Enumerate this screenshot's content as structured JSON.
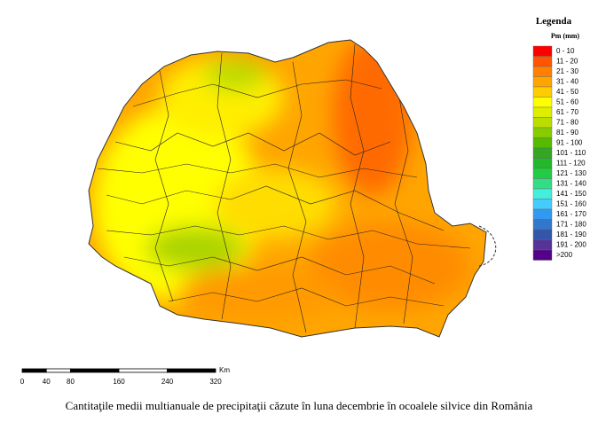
{
  "legend": {
    "title": "Legenda",
    "subtitle": "Pm (mm)",
    "items": [
      {
        "label": "0 - 10",
        "color": "#ff0000"
      },
      {
        "label": "11 - 20",
        "color": "#ff5500"
      },
      {
        "label": "21 - 30",
        "color": "#ff8000"
      },
      {
        "label": "31 - 40",
        "color": "#ffa500"
      },
      {
        "label": "41 - 50",
        "color": "#ffcc00"
      },
      {
        "label": "51 - 60",
        "color": "#ffff00"
      },
      {
        "label": "61 - 70",
        "color": "#ddee00"
      },
      {
        "label": "71 - 80",
        "color": "#bbdd00"
      },
      {
        "label": "81 - 90",
        "color": "#88cc00"
      },
      {
        "label": "91 - 100",
        "color": "#55bb00"
      },
      {
        "label": "101 - 110",
        "color": "#33a622"
      },
      {
        "label": "111 - 120",
        "color": "#22b82a"
      },
      {
        "label": "121 - 130",
        "color": "#22cc44"
      },
      {
        "label": "131 - 140",
        "color": "#33dd88"
      },
      {
        "label": "141 - 150",
        "color": "#44eedd"
      },
      {
        "label": "151 - 160",
        "color": "#44ccff"
      },
      {
        "label": "161 - 170",
        "color": "#3399ee"
      },
      {
        "label": "171 - 180",
        "color": "#3377cc"
      },
      {
        "label": "181 - 190",
        "color": "#3355aa"
      },
      {
        "label": "191 - 200",
        "color": "#553399"
      },
      {
        "label": ">200",
        "color": "#550088"
      }
    ]
  },
  "scale_bar": {
    "unit": "Km",
    "ticks": [
      0,
      40,
      80,
      160,
      240,
      320
    ]
  },
  "caption": "Cantitaţile medii multianuale de precipitaţii căzute în luna decembrie în ocoalele silvice din România"
}
